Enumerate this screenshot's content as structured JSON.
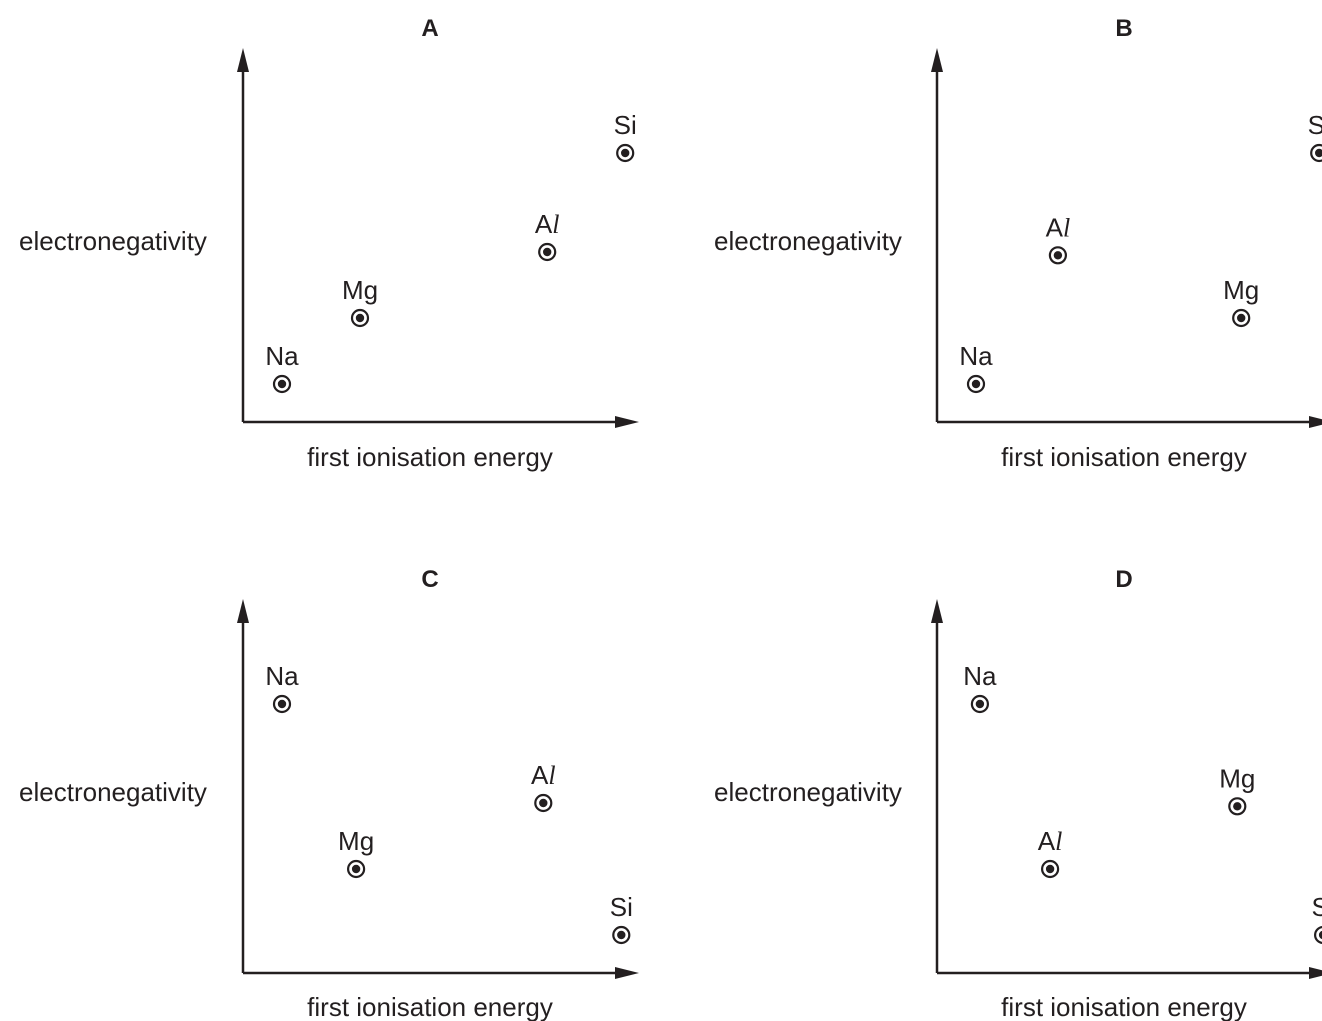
{
  "chart_data": [
    {
      "type": "scatter",
      "title": "A",
      "xlabel": "first ionisation energy",
      "ylabel": "electronegativity",
      "points": [
        {
          "label": "Na",
          "x": 0.1,
          "y": 0.1
        },
        {
          "label": "Mg",
          "x": 0.3,
          "y": 0.3
        },
        {
          "label": "Al",
          "x": 0.78,
          "y": 0.5
        },
        {
          "label": "Si",
          "x": 0.98,
          "y": 0.8
        }
      ]
    },
    {
      "type": "scatter",
      "title": "B",
      "xlabel": "first ionisation energy",
      "ylabel": "electronegativity",
      "points": [
        {
          "label": "Na",
          "x": 0.1,
          "y": 0.1
        },
        {
          "label": "Al",
          "x": 0.31,
          "y": 0.49
        },
        {
          "label": "Mg",
          "x": 0.78,
          "y": 0.3
        },
        {
          "label": "Si",
          "x": 0.98,
          "y": 0.8
        }
      ]
    },
    {
      "type": "scatter",
      "title": "C",
      "xlabel": "first ionisation energy",
      "ylabel": "electronegativity",
      "points": [
        {
          "label": "Na",
          "x": 0.1,
          "y": 0.8
        },
        {
          "label": "Mg",
          "x": 0.29,
          "y": 0.3
        },
        {
          "label": "Al",
          "x": 0.77,
          "y": 0.5
        },
        {
          "label": "Si",
          "x": 0.97,
          "y": 0.1
        }
      ]
    },
    {
      "type": "scatter",
      "title": "D",
      "xlabel": "first ionisation energy",
      "ylabel": "electronegativity",
      "points": [
        {
          "label": "Na",
          "x": 0.11,
          "y": 0.8
        },
        {
          "label": "Al",
          "x": 0.29,
          "y": 0.3
        },
        {
          "label": "Mg",
          "x": 0.77,
          "y": 0.49
        },
        {
          "label": "Si",
          "x": 0.99,
          "y": 0.1
        }
      ]
    }
  ]
}
